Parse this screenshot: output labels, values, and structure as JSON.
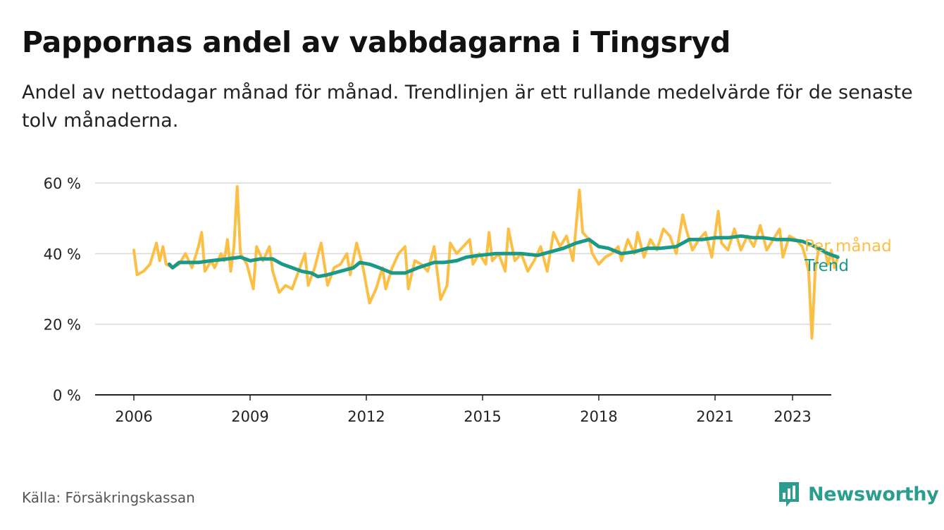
{
  "title": "Pappornas andel av vabbdagarna i Tingsryd",
  "subtitle": "Andel av nettodagar månad för månad. Trendlinjen är ett rullande medelvärde för de senaste tolv månaderna.",
  "source": "Källa: Försäkringskassan",
  "brand": {
    "name": "Newsworthy",
    "icon": "newsworthy-logo-icon",
    "color": "#2a9d8f"
  },
  "chart_data": {
    "type": "line",
    "title": "Pappornas andel av vabbdagarna i Tingsryd",
    "xlabel": "",
    "ylabel": "",
    "y_ticks": [
      {
        "value": 0,
        "label": "0 %"
      },
      {
        "value": 20,
        "label": "20 %"
      },
      {
        "value": 40,
        "label": "40 %"
      },
      {
        "value": 60,
        "label": "60 %"
      }
    ],
    "x_ticks": [
      "2006",
      "2009",
      "2012",
      "2015",
      "2018",
      "2021",
      "2023"
    ],
    "ylim": [
      0,
      60
    ],
    "xlim": [
      "2005-01",
      "2024-01"
    ],
    "grid": true,
    "legend": "end-of-line labels (right)",
    "series": [
      {
        "name": "Per månad",
        "color": "#fbbf45",
        "anchors": [
          [
            "2006-01",
            41
          ],
          [
            "2006-02",
            34
          ],
          [
            "2006-04",
            35
          ],
          [
            "2006-06",
            37
          ],
          [
            "2006-08",
            43
          ],
          [
            "2006-09",
            38
          ],
          [
            "2006-10",
            42
          ],
          [
            "2006-11",
            37
          ],
          [
            "2007-01",
            36
          ],
          [
            "2007-03",
            37
          ],
          [
            "2007-05",
            40
          ],
          [
            "2007-07",
            36
          ],
          [
            "2007-09",
            42
          ],
          [
            "2007-10",
            46
          ],
          [
            "2007-11",
            35
          ],
          [
            "2008-01",
            38
          ],
          [
            "2008-02",
            36
          ],
          [
            "2008-04",
            40
          ],
          [
            "2008-05",
            38
          ],
          [
            "2008-06",
            44
          ],
          [
            "2008-07",
            35
          ],
          [
            "2008-08",
            42
          ],
          [
            "2008-09",
            59
          ],
          [
            "2008-10",
            40
          ],
          [
            "2008-12",
            37
          ],
          [
            "2009-02",
            30
          ],
          [
            "2009-03",
            42
          ],
          [
            "2009-05",
            38
          ],
          [
            "2009-07",
            42
          ],
          [
            "2009-08",
            35
          ],
          [
            "2009-10",
            29
          ],
          [
            "2009-12",
            31
          ],
          [
            "2010-02",
            30
          ],
          [
            "2010-04",
            35
          ],
          [
            "2010-06",
            40
          ],
          [
            "2010-07",
            31
          ],
          [
            "2010-09",
            36
          ],
          [
            "2010-11",
            43
          ],
          [
            "2011-01",
            31
          ],
          [
            "2011-03",
            36
          ],
          [
            "2011-05",
            37
          ],
          [
            "2011-07",
            40
          ],
          [
            "2011-08",
            34
          ],
          [
            "2011-10",
            43
          ],
          [
            "2011-12",
            36
          ],
          [
            "2012-02",
            26
          ],
          [
            "2012-04",
            30
          ],
          [
            "2012-06",
            36
          ],
          [
            "2012-07",
            30
          ],
          [
            "2012-09",
            36
          ],
          [
            "2012-11",
            40
          ],
          [
            "2013-01",
            42
          ],
          [
            "2013-02",
            30
          ],
          [
            "2013-04",
            38
          ],
          [
            "2013-06",
            37
          ],
          [
            "2013-08",
            35
          ],
          [
            "2013-10",
            42
          ],
          [
            "2013-12",
            27
          ],
          [
            "2014-02",
            31
          ],
          [
            "2014-03",
            43
          ],
          [
            "2014-05",
            40
          ],
          [
            "2014-07",
            42
          ],
          [
            "2014-09",
            44
          ],
          [
            "2014-10",
            37
          ],
          [
            "2014-12",
            40
          ],
          [
            "2015-02",
            37
          ],
          [
            "2015-03",
            46
          ],
          [
            "2015-04",
            38
          ],
          [
            "2015-06",
            40
          ],
          [
            "2015-08",
            35
          ],
          [
            "2015-09",
            47
          ],
          [
            "2015-11",
            38
          ],
          [
            "2016-01",
            40
          ],
          [
            "2016-03",
            35
          ],
          [
            "2016-05",
            38
          ],
          [
            "2016-07",
            42
          ],
          [
            "2016-09",
            35
          ],
          [
            "2016-11",
            46
          ],
          [
            "2017-01",
            42
          ],
          [
            "2017-03",
            45
          ],
          [
            "2017-05",
            38
          ],
          [
            "2017-06",
            48
          ],
          [
            "2017-07",
            58
          ],
          [
            "2017-08",
            46
          ],
          [
            "2017-10",
            44
          ],
          [
            "2017-11",
            40
          ],
          [
            "2018-01",
            37
          ],
          [
            "2018-03",
            39
          ],
          [
            "2018-05",
            40
          ],
          [
            "2018-07",
            42
          ],
          [
            "2018-08",
            38
          ],
          [
            "2018-10",
            44
          ],
          [
            "2018-12",
            40
          ],
          [
            "2019-01",
            46
          ],
          [
            "2019-03",
            39
          ],
          [
            "2019-05",
            44
          ],
          [
            "2019-07",
            41
          ],
          [
            "2019-09",
            47
          ],
          [
            "2019-11",
            45
          ],
          [
            "2020-01",
            40
          ],
          [
            "2020-03",
            51
          ],
          [
            "2020-04",
            47
          ],
          [
            "2020-06",
            41
          ],
          [
            "2020-08",
            44
          ],
          [
            "2020-10",
            46
          ],
          [
            "2020-12",
            39
          ],
          [
            "2021-02",
            52
          ],
          [
            "2021-03",
            43
          ],
          [
            "2021-05",
            41
          ],
          [
            "2021-07",
            47
          ],
          [
            "2021-09",
            41
          ],
          [
            "2021-11",
            45
          ],
          [
            "2022-01",
            42
          ],
          [
            "2022-03",
            48
          ],
          [
            "2022-05",
            41
          ],
          [
            "2022-07",
            44
          ],
          [
            "2022-09",
            47
          ],
          [
            "2022-10",
            39
          ],
          [
            "2022-12",
            45
          ],
          [
            "2023-02",
            44
          ],
          [
            "2023-04",
            42
          ],
          [
            "2023-05",
            39
          ],
          [
            "2023-06",
            35
          ],
          [
            "2023-07",
            16
          ],
          [
            "2023-08",
            35
          ],
          [
            "2023-09",
            41
          ],
          [
            "2023-11",
            41
          ],
          [
            "2023-12",
            37
          ],
          [
            "2024-01",
            41
          ],
          [
            "2024-02",
            36
          ],
          [
            "2024-03",
            39
          ]
        ]
      },
      {
        "name": "Trend",
        "color": "#1b9988",
        "anchors": [
          [
            "2006-12",
            37
          ],
          [
            "2007-01",
            36
          ],
          [
            "2007-03",
            37.5
          ],
          [
            "2007-06",
            37.5
          ],
          [
            "2007-09",
            37.5
          ],
          [
            "2008-01",
            38
          ],
          [
            "2008-06",
            38.5
          ],
          [
            "2008-10",
            39
          ],
          [
            "2009-01",
            38
          ],
          [
            "2009-04",
            38.5
          ],
          [
            "2009-08",
            38.5
          ],
          [
            "2009-11",
            37
          ],
          [
            "2010-02",
            36
          ],
          [
            "2010-05",
            35
          ],
          [
            "2010-08",
            34.5
          ],
          [
            "2010-10",
            33.5
          ],
          [
            "2011-01",
            34
          ],
          [
            "2011-05",
            35
          ],
          [
            "2011-09",
            36
          ],
          [
            "2011-11",
            37.5
          ],
          [
            "2012-02",
            37
          ],
          [
            "2012-05",
            36
          ],
          [
            "2012-09",
            34.5
          ],
          [
            "2013-01",
            34.5
          ],
          [
            "2013-05",
            36
          ],
          [
            "2013-10",
            37.5
          ],
          [
            "2014-01",
            37.5
          ],
          [
            "2014-05",
            38
          ],
          [
            "2014-08",
            39
          ],
          [
            "2014-12",
            39.5
          ],
          [
            "2015-05",
            40
          ],
          [
            "2015-09",
            40
          ],
          [
            "2016-01",
            40
          ],
          [
            "2016-06",
            39.5
          ],
          [
            "2016-10",
            40.5
          ],
          [
            "2017-02",
            41.5
          ],
          [
            "2017-06",
            43
          ],
          [
            "2017-10",
            44
          ],
          [
            "2018-01",
            42
          ],
          [
            "2018-04",
            41.5
          ],
          [
            "2018-08",
            40
          ],
          [
            "2018-12",
            40.5
          ],
          [
            "2019-04",
            41.5
          ],
          [
            "2019-08",
            41.5
          ],
          [
            "2020-01",
            42
          ],
          [
            "2020-05",
            44
          ],
          [
            "2020-09",
            44
          ],
          [
            "2021-01",
            44.5
          ],
          [
            "2021-05",
            44.5
          ],
          [
            "2021-09",
            45
          ],
          [
            "2022-01",
            44.5
          ],
          [
            "2022-04",
            44.5
          ],
          [
            "2022-08",
            44
          ],
          [
            "2022-12",
            44
          ],
          [
            "2023-04",
            43.5
          ],
          [
            "2023-08",
            42
          ],
          [
            "2023-12",
            40
          ],
          [
            "2024-03",
            39
          ]
        ]
      }
    ],
    "end_labels": [
      "Per månad",
      "Trend"
    ]
  }
}
